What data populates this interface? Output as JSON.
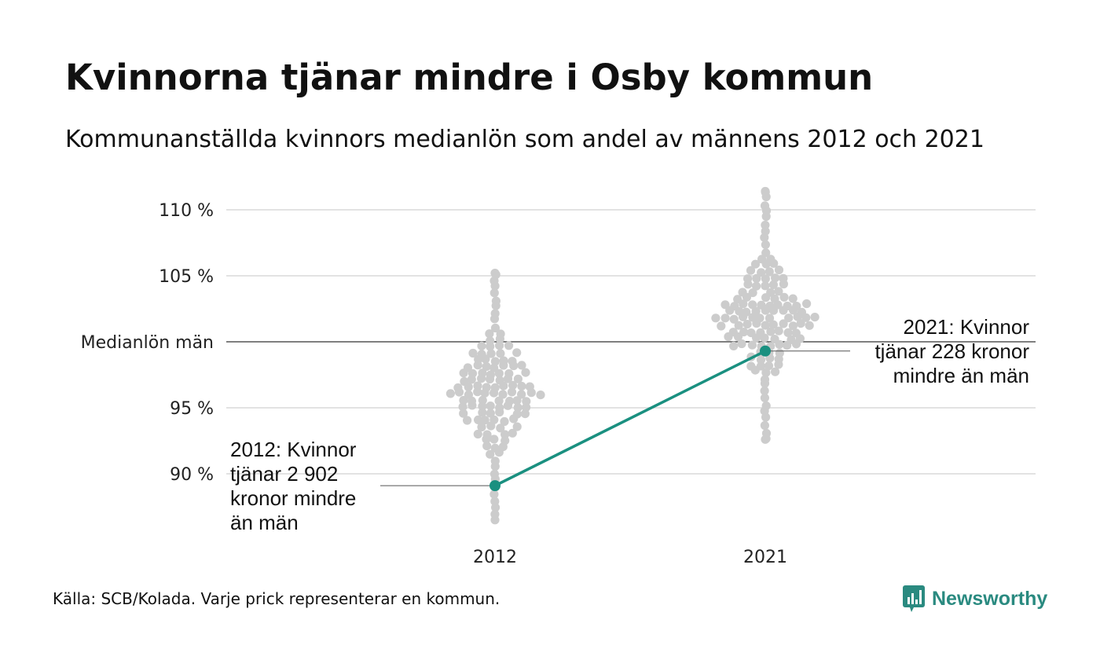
{
  "title": "Kvinnorna tjänar mindre i Osby kommun",
  "subtitle": "Kommunanställda kvinnors medianlön som andel av männens 2012 och 2021",
  "source": "Källa: SCB/Kolada. Varje prick representerar en kommun.",
  "brand": {
    "name": "Newsworthy",
    "logo_icon": "newsworthy-bar-chart-icon",
    "color": "#2a8a80"
  },
  "chart_data": {
    "type": "scatter",
    "style": "beeswarm",
    "categories": [
      "2012",
      "2021"
    ],
    "ylim": [
      85.5,
      112
    ],
    "yticks": [
      {
        "value": 90,
        "label": "90 %"
      },
      {
        "value": 95,
        "label": "95 %"
      },
      {
        "value": 100,
        "label": "Medianlön män"
      },
      {
        "value": 105,
        "label": "105 %"
      },
      {
        "value": 110,
        "label": "110 %"
      }
    ],
    "grid": true,
    "dot_color": "#cccccc",
    "highlight_color": "#1a9080",
    "swarm": [
      {
        "category": "2012",
        "min": 86.5,
        "max": 105.2,
        "center": 96.2,
        "spread": 2.6
      },
      {
        "category": "2021",
        "min": 92.6,
        "max": 111.4,
        "center": 101.8,
        "spread": 2.6
      }
    ],
    "highlight_series": {
      "points": [
        {
          "x": "2012",
          "y": 89.1
        },
        {
          "x": "2021",
          "y": 99.3
        }
      ]
    },
    "annotations": [
      {
        "x": "2012",
        "y": 89.1,
        "lines": [
          "2012: Kvinnor",
          "tjänar 2 902",
          "kronor mindre",
          "än män"
        ]
      },
      {
        "x": "2021",
        "y": 99.3,
        "lines": [
          "2021: Kvinnor",
          "tjänar 228 kronor",
          "mindre än män"
        ]
      }
    ]
  }
}
